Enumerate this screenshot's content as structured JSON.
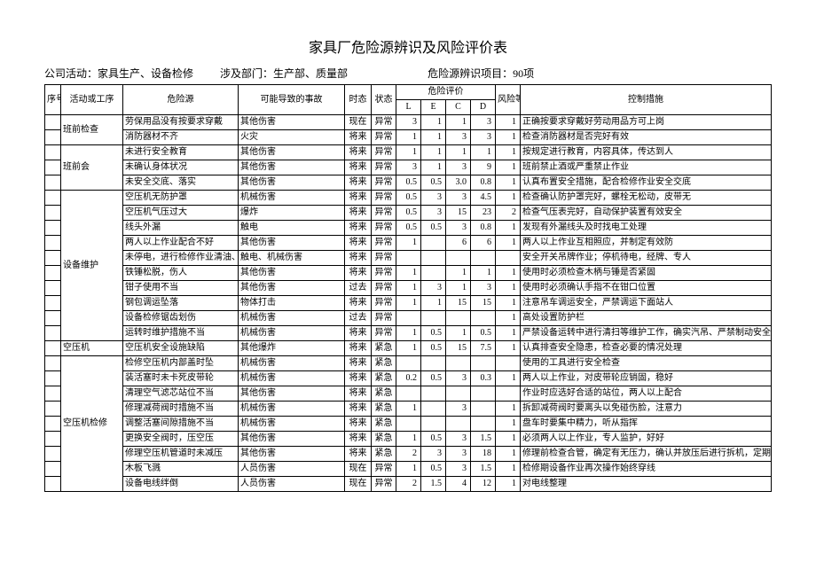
{
  "title": "家具厂危险源辨识及风险评价表",
  "meta": {
    "activity_label": "公司活动：",
    "activity_value": "家具生产、设备检修",
    "dept_label": "涉及部门：",
    "dept_value": "生产部、质量部",
    "item_label": "危险源辨识项目：",
    "item_value": "90项"
  },
  "headers": {
    "seq": "序号",
    "activity": "活动或工序",
    "hazard": "危险源",
    "accident": "可能导致的事故",
    "time": "时态",
    "state": "状态",
    "risk_eval": "危险评价",
    "L": "L",
    "E": "E",
    "C": "C",
    "D": "D",
    "level": "风险等级",
    "control": "控制措施"
  },
  "groups": [
    {
      "activity": "班前检查",
      "rows": [
        {
          "hazard": "劳保用品没有按要求穿戴",
          "accident": "其他伤害",
          "time": "现在",
          "state": "异常",
          "L": "3",
          "E": "1",
          "C": "1",
          "D": "3",
          "lvl": "1",
          "ctrl": "正确按要求穿戴好劳动用品方可上岗"
        },
        {
          "hazard": "消防器材不齐",
          "accident": "火灾",
          "time": "将来",
          "state": "异常",
          "L": "1",
          "E": "1",
          "C": "3",
          "D": "3",
          "lvl": "1",
          "ctrl": "检查消防器材是否完好有效"
        }
      ]
    },
    {
      "activity": "班前会",
      "rows": [
        {
          "hazard": "未进行安全教育",
          "accident": "其他伤害",
          "time": "将来",
          "state": "异常",
          "L": "1",
          "E": "1",
          "C": "1",
          "D": "1",
          "lvl": "1",
          "ctrl": "按规定进行教育，内容具体，传达到人"
        },
        {
          "hazard": "未确认身体状况",
          "accident": "其他伤害",
          "time": "将来",
          "state": "异常",
          "L": "3",
          "E": "1",
          "C": "3",
          "D": "9",
          "lvl": "1",
          "ctrl": "班前禁止酒或严重禁止作业"
        },
        {
          "hazard": "未安全交底、落实",
          "accident": "其他伤害",
          "time": "将来",
          "state": "异常",
          "L": "0.5",
          "E": "0.5",
          "C": "3.0",
          "D": "0.8",
          "lvl": "1",
          "ctrl": "认真布置安全措施，配合检修作业安全交底"
        }
      ]
    },
    {
      "activity": "设备维护",
      "rows": [
        {
          "hazard": "空压机无防护罩",
          "accident": "机械伤害",
          "time": "将来",
          "state": "异常",
          "L": "0.5",
          "E": "3",
          "C": "3",
          "D": "4.5",
          "lvl": "1",
          "ctrl": "检查确认防护罩完好，螺栓无松动，皮带无"
        },
        {
          "hazard": "空压机气压过大",
          "accident": "爆炸",
          "time": "将来",
          "state": "异常",
          "L": "0.5",
          "E": "3",
          "C": "15",
          "D": "23",
          "lvl": "2",
          "ctrl": "检查气压表完好，自动保护装置有效安全"
        },
        {
          "hazard": "线头外漏",
          "accident": "触电",
          "time": "将来",
          "state": "异常",
          "L": "0.5",
          "E": "0.5",
          "C": "3",
          "D": "0.8",
          "lvl": "1",
          "ctrl": "发现有外漏线头及时找电工处理"
        },
        {
          "hazard": "两人以上作业配合不好",
          "accident": "其他伤害",
          "time": "将来",
          "state": "异常",
          "L": "1",
          "E": "",
          "C": "6",
          "D": "6",
          "lvl": "1",
          "ctrl": "两人以上作业互相照应，并制定有效防"
        },
        {
          "hazard": "未停电，进行检修作业清油、清理转动或设",
          "accident": "触电、机械伤害",
          "time": "将来",
          "state": "异常",
          "L": "",
          "E": "",
          "C": "",
          "D": "",
          "lvl": "",
          "ctrl": "安全开关吊牌作业；停机待电，经牌、专人"
        },
        {
          "hazard": "铁锤松脱，伤人",
          "accident": "其他伤害",
          "time": "将来",
          "state": "异常",
          "L": "1",
          "E": "",
          "C": "1",
          "D": "1",
          "lvl": "1",
          "ctrl": "使用时必须检查木柄与锤是否紧固"
        },
        {
          "hazard": "钳子使用不当",
          "accident": "其他伤害",
          "time": "过去",
          "state": "异常",
          "L": "1",
          "E": "3",
          "C": "1",
          "D": "3",
          "lvl": "1",
          "ctrl": "使用时必须确认手指不在钳口位置"
        },
        {
          "hazard": "钢包调运坠落",
          "accident": "物体打击",
          "time": "将来",
          "state": "异常",
          "L": "1",
          "E": "1",
          "C": "15",
          "D": "15",
          "lvl": "1",
          "ctrl": "注意吊车调运安全，严禁调运下面站人"
        },
        {
          "hazard": "设备检修锯齿划伤",
          "accident": "机械伤害",
          "time": "过去",
          "state": "异常",
          "L": "",
          "E": "",
          "C": "",
          "D": "",
          "lvl": "1",
          "ctrl": "高处设置防护栏"
        },
        {
          "hazard": "运转时维护措施不当",
          "accident": "机械伤害",
          "time": "将来",
          "state": "异常",
          "L": "1",
          "E": "0.5",
          "C": "1",
          "D": "0.5",
          "lvl": "1",
          "ctrl": "严禁设备运转中进行清扫等维护工作，确实汽吊、严禁制动安全可靠能操练后再"
        }
      ]
    },
    {
      "activity": "空压机",
      "rows": [
        {
          "hazard": "空压机安全设施缺陷",
          "accident": "其他爆炸",
          "time": "将来",
          "state": "紧急",
          "L": "1",
          "E": "0.5",
          "C": "15",
          "D": "7.5",
          "lvl": "1",
          "ctrl": "认真排查安全隐患，检查必要的情况处理"
        }
      ]
    },
    {
      "activity": "空压机检修",
      "rows": [
        {
          "hazard": "检修空压机内部盖时坠",
          "accident": "机械伤害",
          "time": "将来",
          "state": "紧急",
          "L": "",
          "E": "",
          "C": "",
          "D": "",
          "lvl": "",
          "ctrl": "使用的工具进行安全检查"
        },
        {
          "hazard": "装活塞时未卡死皮带轮",
          "accident": "机械伤害",
          "time": "将来",
          "state": "紧急",
          "L": "0.2",
          "E": "0.5",
          "C": "3",
          "D": "0.3",
          "lvl": "1",
          "ctrl": "两人以上作业，对皮带轮应销固，稳好"
        },
        {
          "hazard": "清理空气滤芯站位不当",
          "accident": "其他伤害",
          "time": "将来",
          "state": "紧急",
          "L": "",
          "E": "",
          "C": "",
          "D": "",
          "lvl": "",
          "ctrl": "作业时应选好合适的站位，两人以上配合"
        },
        {
          "hazard": "修理减荷阀时措施不当",
          "accident": "机械伤害",
          "time": "将来",
          "state": "紧急",
          "L": "1",
          "E": "",
          "C": "3",
          "D": "",
          "lvl": "1",
          "ctrl": "拆卸减荷阀时要离头以免碰伤脸，注意力"
        },
        {
          "hazard": "调整活塞间隙措施不当",
          "accident": "机械伤害",
          "time": "将来",
          "state": "紧急",
          "L": "",
          "E": "",
          "C": "",
          "D": "",
          "lvl": "1",
          "ctrl": "盘车时要集中精力，听从指挥"
        },
        {
          "hazard": "更换安全阀时，压空压",
          "accident": "其他伤害",
          "time": "将来",
          "state": "紧急",
          "L": "1",
          "E": "0.5",
          "C": "3",
          "D": "1.5",
          "lvl": "1",
          "ctrl": "必须两人以上作业，专人监护，好好"
        },
        {
          "hazard": "修理空压机管道时未减压",
          "accident": "其他伤害",
          "time": "将来",
          "state": "紧急",
          "L": "2",
          "E": "3",
          "C": "3",
          "D": "18",
          "lvl": "1",
          "ctrl": "修理前检查合管，确定有无压力，确认并放压后进行拆机，定期进行设备维护"
        },
        {
          "hazard": "木板飞溅",
          "accident": "人员伤害",
          "time": "现在",
          "state": "异常",
          "L": "1",
          "E": "0.5",
          "C": "3",
          "D": "1.5",
          "lvl": "1",
          "ctrl": "检修期设备作业再次操作始终穿线"
        },
        {
          "hazard": "设备电线绊倒",
          "accident": "人员伤害",
          "time": "现在",
          "state": "异常",
          "L": "2",
          "E": "1.5",
          "C": "4",
          "D": "12",
          "lvl": "1",
          "ctrl": "对电线整理"
        }
      ]
    }
  ]
}
